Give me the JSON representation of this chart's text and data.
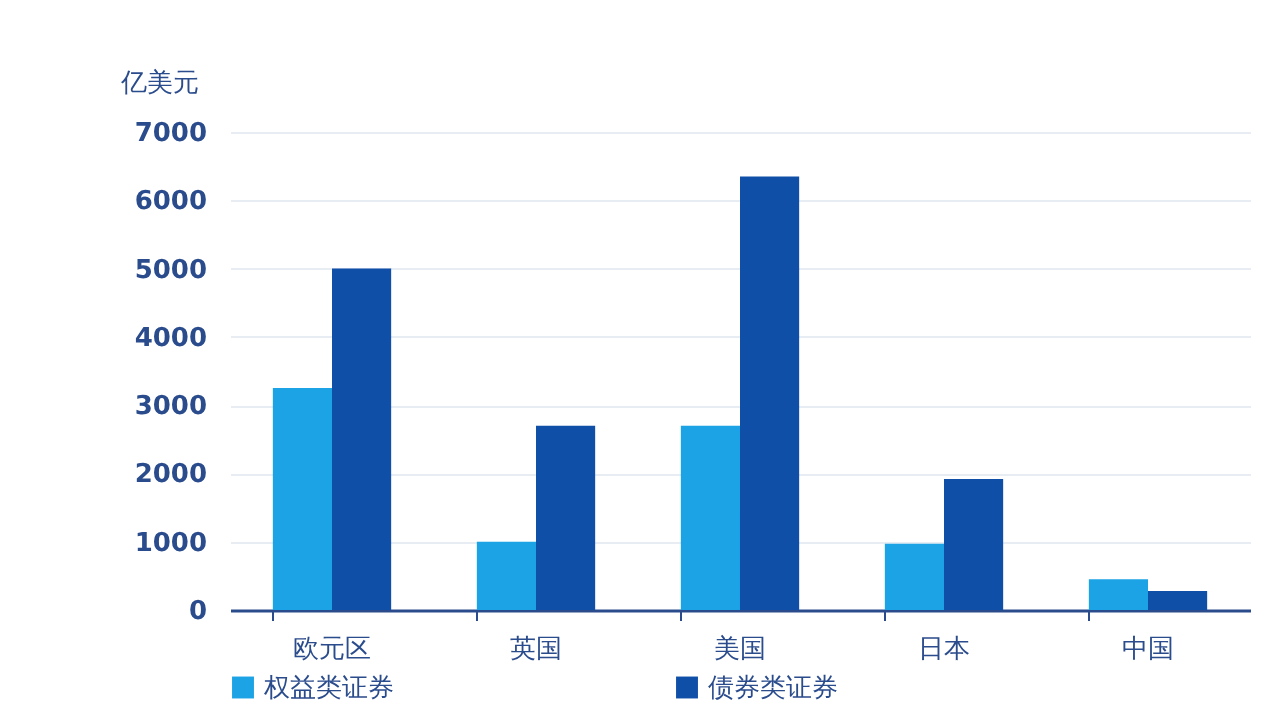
{
  "chart_data": {
    "type": "bar",
    "ylabel": "亿美元",
    "categories": [
      "欧元区",
      "英国",
      "美国",
      "日本",
      "中国"
    ],
    "series": [
      {
        "name": "权益类证券",
        "color": "#1ba3e6",
        "values": [
          3250,
          1000,
          2700,
          970,
          450
        ]
      },
      {
        "name": "债券类证券",
        "color": "#0f4fa8",
        "values": [
          5000,
          2700,
          6350,
          1920,
          280
        ]
      }
    ],
    "ylim": [
      0,
      7000
    ],
    "yticks": [
      0,
      1000,
      2000,
      3000,
      4000,
      5000,
      6000,
      7000
    ],
    "grid": "y",
    "legend": "bottom"
  }
}
